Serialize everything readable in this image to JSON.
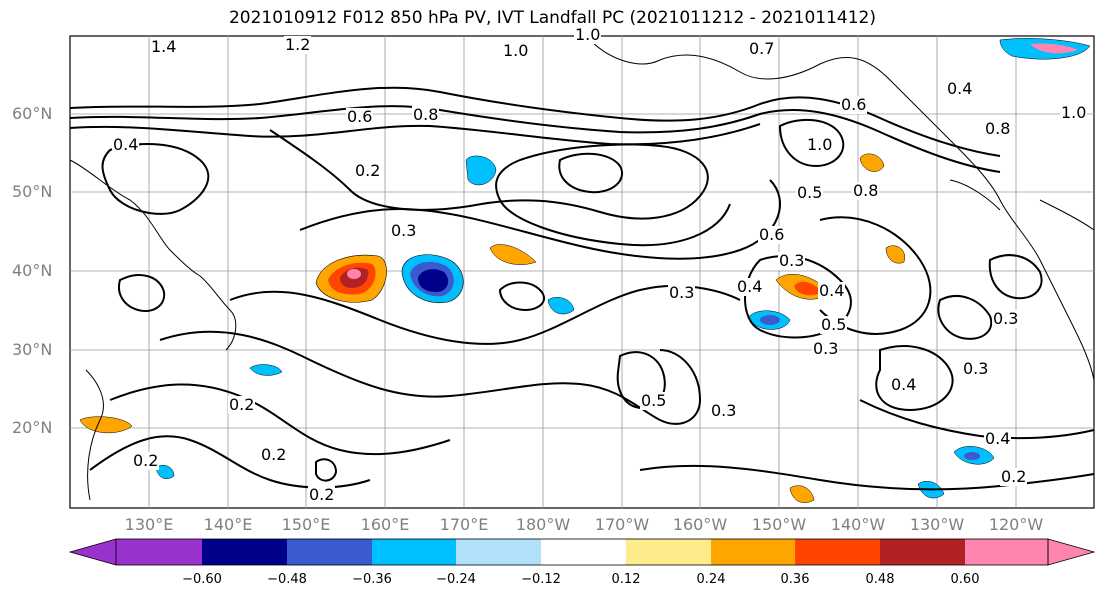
{
  "title": "2021010912 F012 850 hPa PV, IVT Landfall PC (2021011212 - 2021011412)",
  "map": {
    "lat_labels": [
      "60°N",
      "50°N",
      "40°N",
      "30°N",
      "20°N"
    ],
    "lon_labels": [
      "130°E",
      "140°E",
      "150°E",
      "160°E",
      "170°E",
      "180°W",
      "170°W",
      "160°W",
      "150°W",
      "140°W",
      "130°W",
      "120°W"
    ],
    "contour_labels": [
      "1.4",
      "1.2",
      "1.0",
      "0.7",
      "0.6",
      "0.8",
      "0.4",
      "1.0",
      "0.8",
      "0.4",
      "0.6",
      "0.2",
      "1.0",
      "0.8",
      "0.5",
      "0.3",
      "0.6",
      "0.4",
      "0.3",
      "0.4",
      "0.5",
      "0.3",
      "0.3",
      "0.3",
      "0.3",
      "0.4",
      "0.3",
      "0.5",
      "0.2",
      "0.2",
      "0.2",
      "0.2",
      "0.4",
      "0.2",
      "1.0"
    ],
    "colors": {
      "contour": "#000000",
      "coast": "#000000",
      "grid": "#9a9a9a",
      "axis_label": "#808080"
    }
  },
  "colorbar": {
    "ticks": [
      "−0.60",
      "−0.48",
      "−0.36",
      "−0.24",
      "−0.12",
      "0.12",
      "0.24",
      "0.36",
      "0.48",
      "0.60"
    ],
    "colors": [
      "#9932cc",
      "#00008b",
      "#3a5bd0",
      "#00bfff",
      "#b0e0fa",
      "#ffffff",
      "#ffeb8a",
      "#ffa500",
      "#ff4500",
      "#b22222",
      "#ff85b0"
    ]
  }
}
